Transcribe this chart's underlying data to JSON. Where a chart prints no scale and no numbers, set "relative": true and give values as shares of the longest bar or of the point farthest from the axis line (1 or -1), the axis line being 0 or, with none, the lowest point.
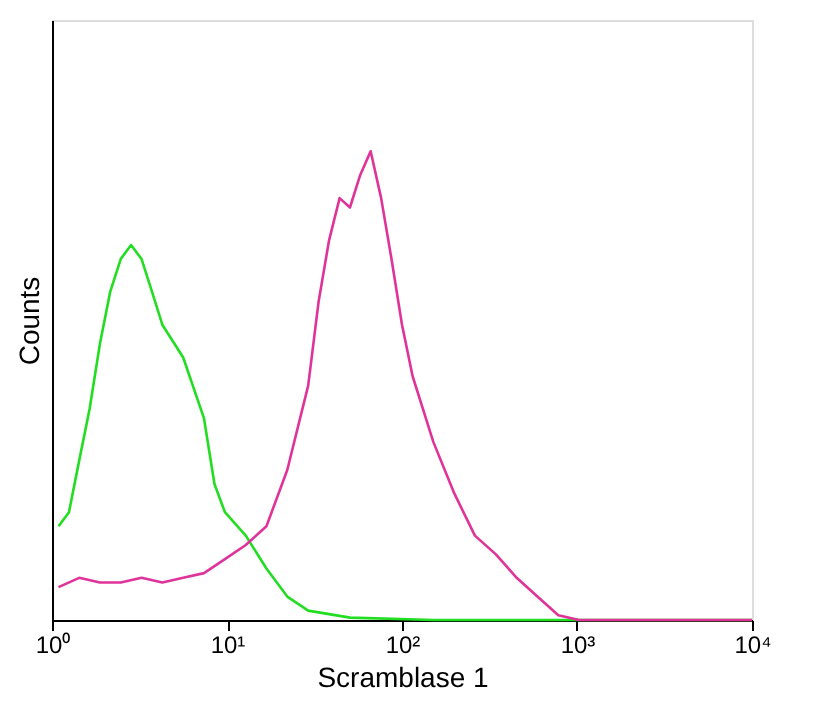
{
  "chart_data": {
    "type": "line",
    "relative": true,
    "log": "x",
    "grid": false,
    "tick_labels": "x",
    "xlabel": "Scramblase 1",
    "ylabel": "Counts",
    "xlim": [
      1,
      10000
    ],
    "xticks": [
      {
        "value": 1,
        "label": "10⁰"
      },
      {
        "value": 10,
        "label": "10¹"
      },
      {
        "value": 100,
        "label": "10²"
      },
      {
        "value": 1000,
        "label": "10³"
      },
      {
        "value": 10000,
        "label": "10⁴"
      }
    ],
    "series": [
      {
        "color": "#22dd22",
        "x": [
          1.09,
          1.25,
          1.43,
          1.64,
          1.88,
          2.15,
          2.47,
          2.83,
          3.25,
          3.73,
          4.27,
          5.62,
          7.39,
          8.48,
          9.73,
          12.8,
          16.8,
          22.1,
          29.1,
          50.4,
          151,
          10000
        ],
        "values": [
          0.2,
          0.23,
          0.34,
          0.45,
          0.59,
          0.7,
          0.77,
          0.8,
          0.77,
          0.7,
          0.63,
          0.56,
          0.43,
          0.29,
          0.23,
          0.18,
          0.11,
          0.05,
          0.02,
          0.005,
          0,
          0
        ]
      },
      {
        "color": "#e0339a",
        "x": [
          1.09,
          1.43,
          1.88,
          2.47,
          3.25,
          4.27,
          5.62,
          7.39,
          9.73,
          12.8,
          16.8,
          22.1,
          29.1,
          33.4,
          38.3,
          44.0,
          50.4,
          57.8,
          66.2,
          76.0,
          87.1,
          100,
          115,
          151,
          199,
          261,
          344,
          452,
          594,
          782,
          1028,
          10000
        ],
        "values": [
          0.07,
          0.09,
          0.08,
          0.08,
          0.09,
          0.08,
          0.09,
          0.1,
          0.13,
          0.16,
          0.2,
          0.32,
          0.5,
          0.68,
          0.81,
          0.9,
          0.88,
          0.95,
          1,
          0.9,
          0.77,
          0.63,
          0.52,
          0.38,
          0.27,
          0.18,
          0.14,
          0.09,
          0.05,
          0.01,
          0,
          0
        ]
      }
    ]
  }
}
